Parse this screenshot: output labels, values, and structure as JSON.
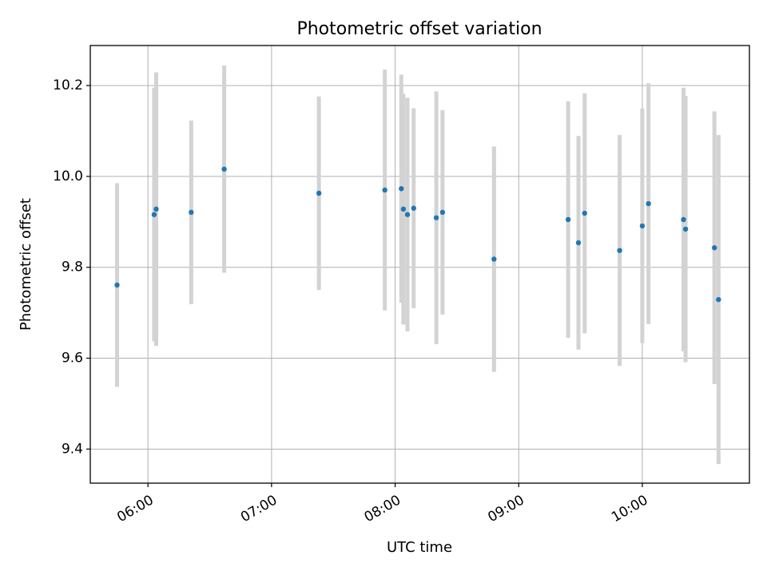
{
  "chart_data": {
    "type": "scatter",
    "title": "Photometric offset variation",
    "xlabel": "UTC time",
    "ylabel": "Photometric offset",
    "x_ticks": [
      "06:00",
      "07:00",
      "08:00",
      "09:00",
      "10:00"
    ],
    "y_ticks": [
      "9.4",
      "9.6",
      "9.8",
      "10.0",
      "10.2"
    ],
    "xlim": [
      "05:32",
      "10:52"
    ],
    "ylim": [
      9.325,
      10.288
    ],
    "grid": true,
    "colors": {
      "point": "#1f77b4",
      "errorbar": "#d3d3d3",
      "grid": "#b0b0b0"
    },
    "points": [
      {
        "x": "05:45",
        "y": 9.761,
        "yerr": 0.224
      },
      {
        "x": "06:03",
        "y": 9.916,
        "yerr": 0.279
      },
      {
        "x": "06:04",
        "y": 9.928,
        "yerr": 0.301
      },
      {
        "x": "06:21",
        "y": 9.921,
        "yerr": 0.202
      },
      {
        "x": "06:37",
        "y": 10.016,
        "yerr": 0.228
      },
      {
        "x": "07:23",
        "y": 9.963,
        "yerr": 0.213
      },
      {
        "x": "07:55",
        "y": 9.97,
        "yerr": 0.265
      },
      {
        "x": "08:03",
        "y": 9.973,
        "yerr": 0.251
      },
      {
        "x": "08:04",
        "y": 9.928,
        "yerr": 0.254
      },
      {
        "x": "08:06",
        "y": 9.916,
        "yerr": 0.257
      },
      {
        "x": "08:09",
        "y": 9.93,
        "yerr": 0.22
      },
      {
        "x": "08:20",
        "y": 9.909,
        "yerr": 0.278
      },
      {
        "x": "08:23",
        "y": 9.921,
        "yerr": 0.225
      },
      {
        "x": "08:48",
        "y": 9.818,
        "yerr": 0.248
      },
      {
        "x": "09:24",
        "y": 9.905,
        "yerr": 0.26
      },
      {
        "x": "09:29",
        "y": 9.854,
        "yerr": 0.235
      },
      {
        "x": "09:32",
        "y": 9.919,
        "yerr": 0.264
      },
      {
        "x": "09:49",
        "y": 9.837,
        "yerr": 0.254
      },
      {
        "x": "10:00",
        "y": 9.891,
        "yerr": 0.258
      },
      {
        "x": "10:03",
        "y": 9.94,
        "yerr": 0.265
      },
      {
        "x": "10:20",
        "y": 9.905,
        "yerr": 0.29
      },
      {
        "x": "10:21",
        "y": 9.884,
        "yerr": 0.293
      },
      {
        "x": "10:35",
        "y": 9.843,
        "yerr": 0.3
      },
      {
        "x": "10:37",
        "y": 9.729,
        "yerr": 0.362
      }
    ]
  }
}
